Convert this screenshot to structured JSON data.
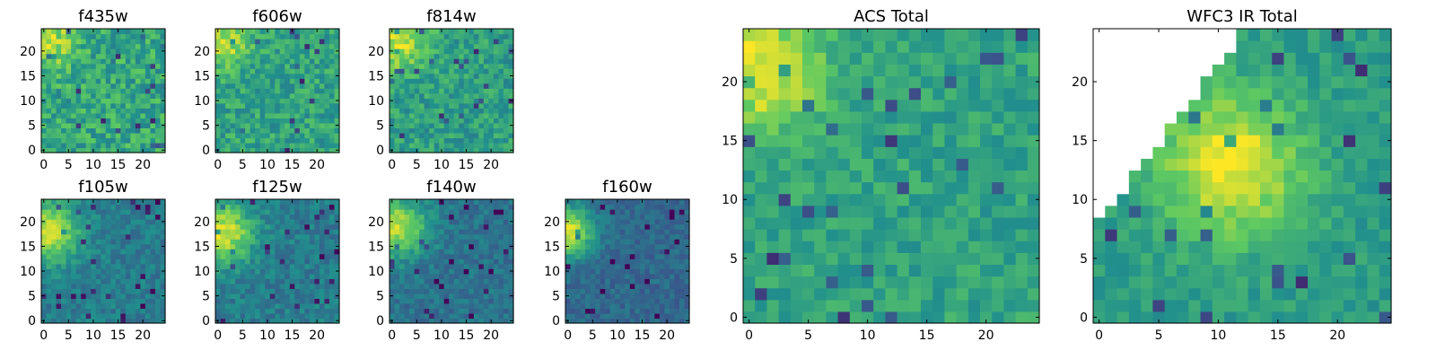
{
  "figure": {
    "colormap": "viridis",
    "colors": [
      "#440154",
      "#3b528b",
      "#21908d",
      "#5dc962",
      "#fde725"
    ],
    "background": "#ffffff"
  },
  "chart_data": [
    {
      "type": "heatmap",
      "title": "f435w",
      "grid_size": [
        25,
        25
      ],
      "x_ticks": [
        "0",
        "5",
        "10",
        "15",
        "20"
      ],
      "y_ticks": [
        "0",
        "5",
        "10",
        "15",
        "20"
      ],
      "pattern": "noisy field, mean 0.60, bright blob upper-left",
      "mean_level": 0.6,
      "noise": 0.16,
      "blob": {
        "x": 1,
        "y": 22,
        "radius": 5,
        "amplitude": 0.3
      },
      "masked_region": "none"
    },
    {
      "type": "heatmap",
      "title": "f606w",
      "grid_size": [
        25,
        25
      ],
      "x_ticks": [
        "0",
        "5",
        "10",
        "15",
        "20"
      ],
      "y_ticks": [
        "0",
        "5",
        "10",
        "15",
        "20"
      ],
      "pattern": "noisy field, mean 0.58, bright blob upper-left",
      "mean_level": 0.58,
      "noise": 0.14,
      "blob": {
        "x": 1,
        "y": 22,
        "radius": 5,
        "amplitude": 0.32
      },
      "masked_region": "none"
    },
    {
      "type": "heatmap",
      "title": "f814w",
      "grid_size": [
        25,
        25
      ],
      "x_ticks": [
        "0",
        "5",
        "10",
        "15",
        "20"
      ],
      "y_ticks": [
        "0",
        "5",
        "10",
        "15",
        "20"
      ],
      "pattern": "noisy field, mean 0.56, bright blob upper-left",
      "mean_level": 0.56,
      "noise": 0.13,
      "blob": {
        "x": 1,
        "y": 22,
        "radius": 6,
        "amplitude": 0.36
      },
      "masked_region": "none"
    },
    {
      "type": "heatmap",
      "title": "f105w",
      "grid_size": [
        25,
        25
      ],
      "x_ticks": [
        "0",
        "5",
        "10",
        "15",
        "20"
      ],
      "y_ticks": [
        "0",
        "5",
        "10",
        "15",
        "20"
      ],
      "pattern": "smooth field, mean 0.42, bright blob upper-left",
      "mean_level": 0.42,
      "noise": 0.09,
      "blob": {
        "x": 1,
        "y": 18,
        "radius": 6,
        "amplitude": 0.5
      },
      "masked_region": "none"
    },
    {
      "type": "heatmap",
      "title": "f125w",
      "grid_size": [
        25,
        25
      ],
      "x_ticks": [
        "0",
        "5",
        "10",
        "15",
        "20"
      ],
      "y_ticks": [
        "0",
        "5",
        "10",
        "15",
        "20"
      ],
      "pattern": "smooth field, mean 0.42, bright blob upper-left",
      "mean_level": 0.42,
      "noise": 0.1,
      "blob": {
        "x": 1,
        "y": 18,
        "radius": 6,
        "amplitude": 0.52
      },
      "masked_region": "none"
    },
    {
      "type": "heatmap",
      "title": "f140w",
      "grid_size": [
        25,
        25
      ],
      "x_ticks": [
        "0",
        "5",
        "10",
        "15",
        "20"
      ],
      "y_ticks": [
        "0",
        "5",
        "10",
        "15",
        "20"
      ],
      "pattern": "smooth field, mean 0.38, bright blob upper-left",
      "mean_level": 0.38,
      "noise": 0.09,
      "blob": {
        "x": 1,
        "y": 19,
        "radius": 6,
        "amplitude": 0.52
      },
      "masked_region": "none"
    },
    {
      "type": "heatmap",
      "title": "f160w",
      "grid_size": [
        25,
        25
      ],
      "x_ticks": [
        "0",
        "5",
        "10",
        "15",
        "20"
      ],
      "y_ticks": [
        "0",
        "5",
        "10",
        "15",
        "20"
      ],
      "pattern": "smooth field, mean 0.34, bright blob upper-left",
      "mean_level": 0.34,
      "noise": 0.08,
      "blob": {
        "x": 0,
        "y": 18,
        "radius": 5,
        "amplitude": 0.6
      },
      "masked_region": "none"
    },
    {
      "type": "heatmap",
      "title": "ACS Total",
      "grid_size": [
        25,
        25
      ],
      "x_ticks": [
        "0",
        "5",
        "10",
        "15",
        "20"
      ],
      "y_ticks": [
        "0",
        "5",
        "10",
        "15",
        "20"
      ],
      "pattern": "noisy field, mean 0.58, bright blob upper-left",
      "mean_level": 0.58,
      "noise": 0.1,
      "blob": {
        "x": 1,
        "y": 21,
        "radius": 5,
        "amplitude": 0.4
      },
      "masked_region": "none"
    },
    {
      "type": "heatmap",
      "title": "WFC3 IR Total",
      "grid_size": [
        25,
        25
      ],
      "x_ticks": [
        "0",
        "5",
        "10",
        "15",
        "20"
      ],
      "y_ticks": [
        "0",
        "5",
        "10",
        "15",
        "20"
      ],
      "pattern": "smooth field, mean 0.55, bright blob center, upper-left triangle masked (white)",
      "mean_level": 0.55,
      "noise": 0.08,
      "blob": {
        "x": 11,
        "y": 13,
        "radius": 6,
        "amplitude": 0.45
      },
      "masked_region": "upper-left triangle"
    }
  ]
}
